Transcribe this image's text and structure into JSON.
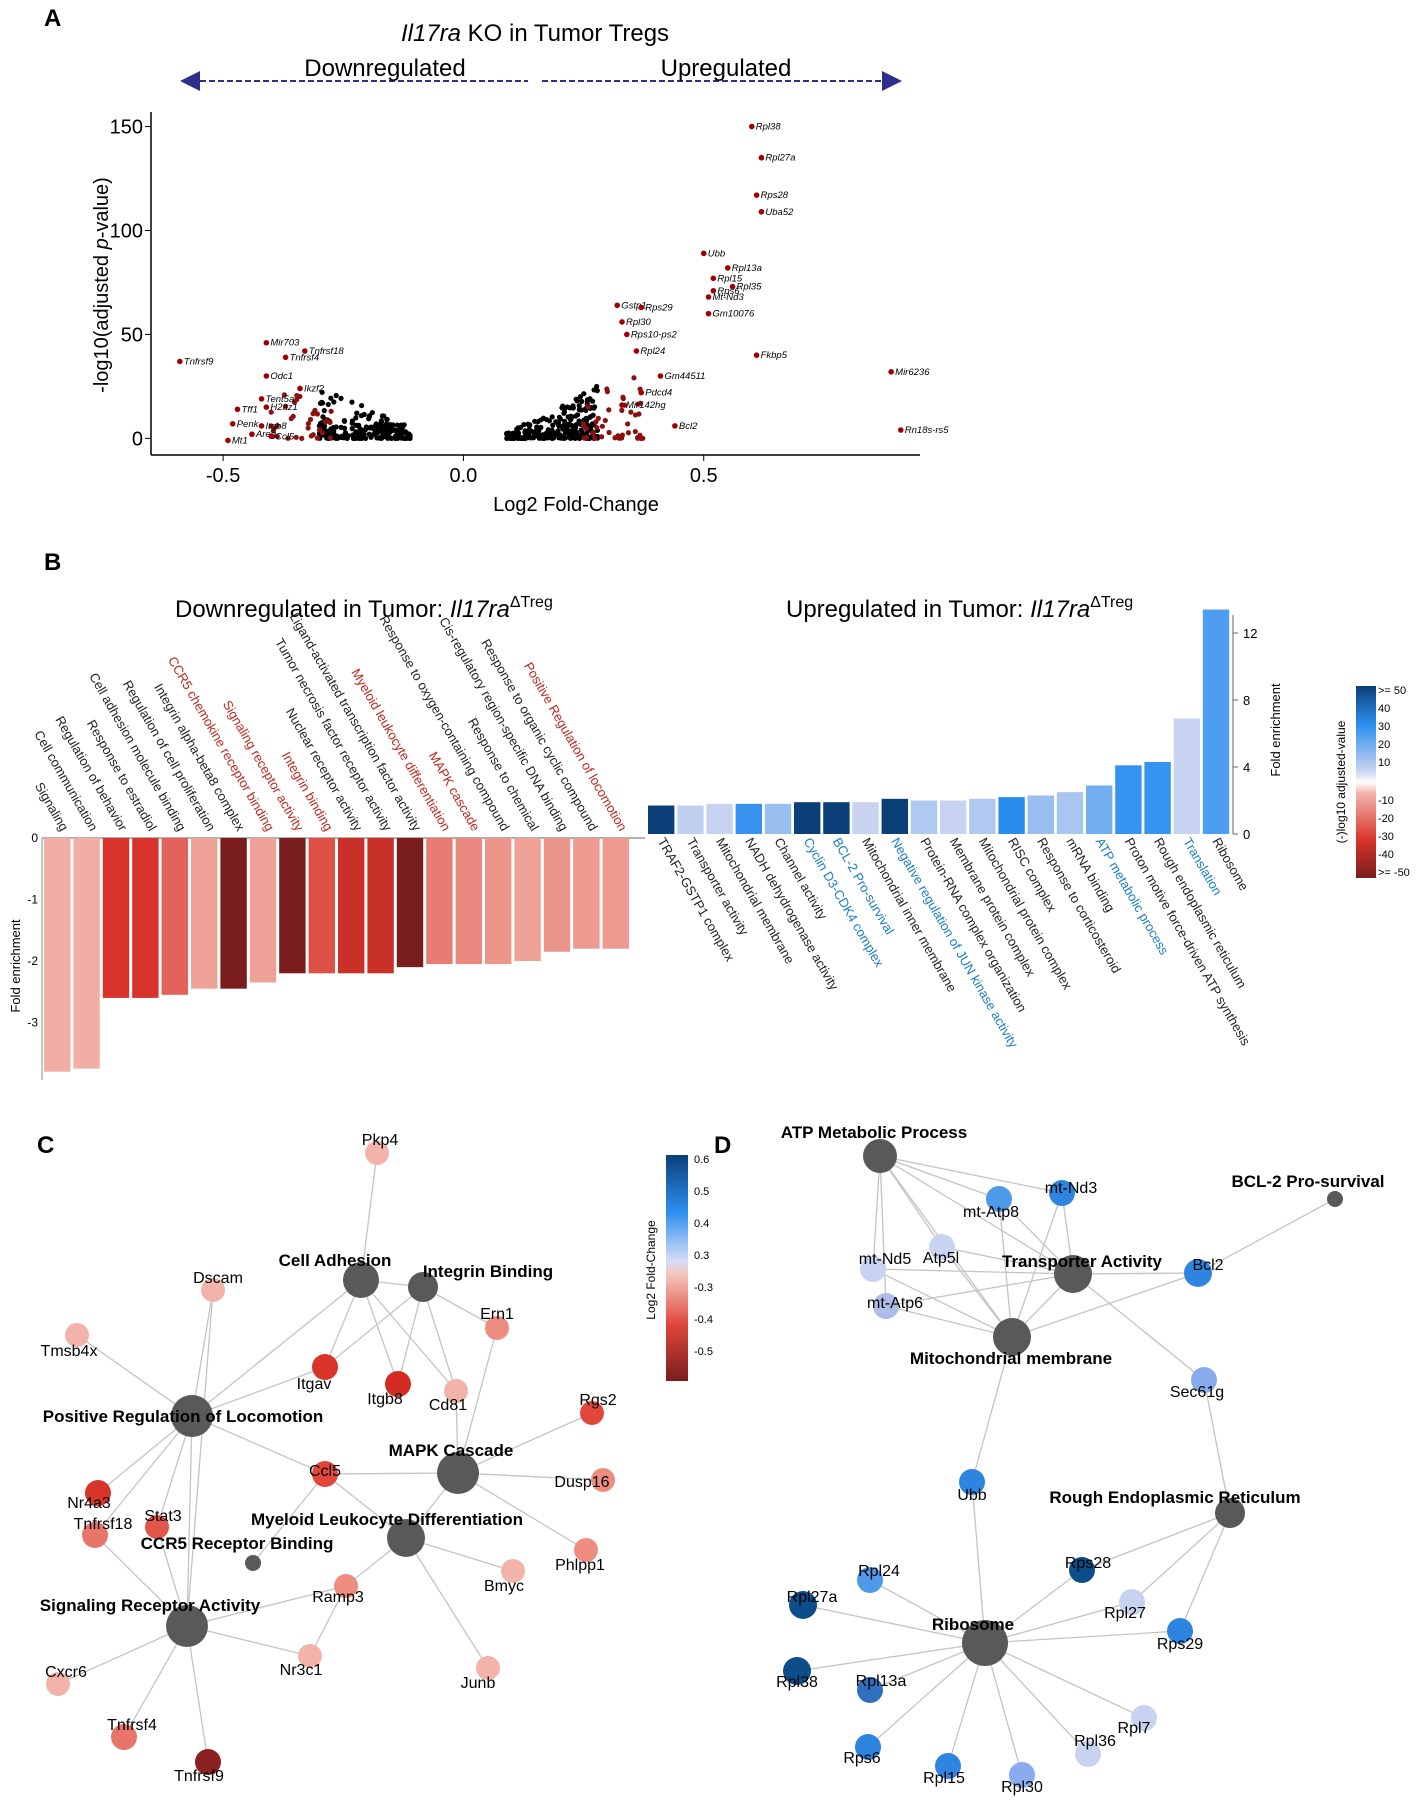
{
  "panel_a": {
    "label": "A",
    "title": "Il17ra KO in Tumor Tregs",
    "down_label": "Downregulated",
    "up_label": "Upregulated",
    "chart_data": {
      "type": "scatter",
      "xlabel": "Log2 Fold-Change",
      "ylabel": "-log10(adjusted p-value)",
      "xlim": [
        -0.65,
        0.95
      ],
      "ylim": [
        -8,
        157
      ],
      "xticks": [
        -0.5,
        0.0,
        0.5
      ],
      "yticks": [
        0,
        50,
        100,
        150
      ],
      "labeled_points": [
        {
          "gene": "Rpl38",
          "x": 0.6,
          "y": 150
        },
        {
          "gene": "Rpl27a",
          "x": 0.62,
          "y": 135
        },
        {
          "gene": "Rps28",
          "x": 0.61,
          "y": 117
        },
        {
          "gene": "Uba52",
          "x": 0.62,
          "y": 109
        },
        {
          "gene": "Ubb",
          "x": 0.5,
          "y": 89
        },
        {
          "gene": "Rpl13a",
          "x": 0.55,
          "y": 82
        },
        {
          "gene": "Rpl15",
          "x": 0.52,
          "y": 77
        },
        {
          "gene": "Rpl35",
          "x": 0.56,
          "y": 73
        },
        {
          "gene": "Rps6",
          "x": 0.52,
          "y": 71
        },
        {
          "gene": "Mt-Nd3",
          "x": 0.51,
          "y": 68
        },
        {
          "gene": "Gstp1",
          "x": 0.32,
          "y": 64
        },
        {
          "gene": "Rps29",
          "x": 0.37,
          "y": 63
        },
        {
          "gene": "Gm10076",
          "x": 0.51,
          "y": 60
        },
        {
          "gene": "Rpl30",
          "x": 0.33,
          "y": 56
        },
        {
          "gene": "Rps10-ps2",
          "x": 0.34,
          "y": 50
        },
        {
          "gene": "Rpl24",
          "x": 0.36,
          "y": 42
        },
        {
          "gene": "Fkbp5",
          "x": 0.61,
          "y": 40
        },
        {
          "gene": "Gm44511",
          "x": 0.41,
          "y": 30
        },
        {
          "gene": "Mir6236",
          "x": 0.89,
          "y": 32
        },
        {
          "gene": "Pdcd4",
          "x": 0.37,
          "y": 22
        },
        {
          "gene": "Mir142hg",
          "x": 0.33,
          "y": 16
        },
        {
          "gene": "Bcl2",
          "x": 0.44,
          "y": 6
        },
        {
          "gene": "Rn18s-rs5",
          "x": 0.91,
          "y": 4
        },
        {
          "gene": "Tnfrsf9",
          "x": -0.59,
          "y": 37
        },
        {
          "gene": "Mir703",
          "x": -0.41,
          "y": 46
        },
        {
          "gene": "Tnfrsf18",
          "x": -0.33,
          "y": 42
        },
        {
          "gene": "Tnfrsf4",
          "x": -0.37,
          "y": 39
        },
        {
          "gene": "Odc1",
          "x": -0.41,
          "y": 30
        },
        {
          "gene": "Ikzf2",
          "x": -0.34,
          "y": 24
        },
        {
          "gene": "Tent5a",
          "x": -0.42,
          "y": 19
        },
        {
          "gene": "H2az1",
          "x": -0.41,
          "y": 15
        },
        {
          "gene": "Tff1",
          "x": -0.47,
          "y": 14
        },
        {
          "gene": "Penk",
          "x": -0.48,
          "y": 7
        },
        {
          "gene": "Itgb8",
          "x": -0.42,
          "y": 6
        },
        {
          "gene": "Areg",
          "x": -0.44,
          "y": 2
        },
        {
          "gene": "Ccl5",
          "x": -0.4,
          "y": 1
        },
        {
          "gene": "Mt1",
          "x": -0.49,
          "y": -1
        }
      ]
    }
  },
  "panel_b": {
    "label": "B",
    "down_title": "Downregulated in Tumor: ",
    "up_title": "Upregulated in Tumor: ",
    "gene_italic": "Il17ra",
    "gene_sup": "ΔTreg",
    "chart_data": [
      {
        "type": "bar",
        "title": "Downregulated in Tumor: Il17ra ΔTreg",
        "ylabel": "Fold enrichment",
        "ylim": [
          -4,
          0
        ],
        "yticks": [
          0,
          -1,
          -2,
          -3
        ],
        "terms": [
          {
            "name": "Signaling",
            "value": -3.8,
            "nlogp": -10,
            "highlight": false
          },
          {
            "name": "Cell communication",
            "value": -3.75,
            "nlogp": -10,
            "highlight": false
          },
          {
            "name": "Regulation of behavior",
            "value": -2.6,
            "nlogp": -30,
            "highlight": false
          },
          {
            "name": "Response to estradiol",
            "value": -2.6,
            "nlogp": -30,
            "highlight": false
          },
          {
            "name": "Cell adhesion molecule binding",
            "value": -2.55,
            "nlogp": -22,
            "highlight": false
          },
          {
            "name": "Regulation of cell proliferation",
            "value": -2.45,
            "nlogp": -12,
            "highlight": false
          },
          {
            "name": "Integrin alpha-beta8 complex",
            "value": -2.45,
            "nlogp": -50,
            "highlight": false
          },
          {
            "name": "CCR5 chemokine receptor binding",
            "value": -2.35,
            "nlogp": -12,
            "highlight": true
          },
          {
            "name": "Signaling receptor activity",
            "value": -2.2,
            "nlogp": -50,
            "highlight": true
          },
          {
            "name": "Integrin binding",
            "value": -2.2,
            "nlogp": -25,
            "highlight": true
          },
          {
            "name": "Nuclear receptor activity",
            "value": -2.2,
            "nlogp": -33,
            "highlight": false
          },
          {
            "name": "Tumor necrosis factor receptor activity",
            "value": -2.2,
            "nlogp": -33,
            "highlight": false
          },
          {
            "name": "Ligand-activated transcription factor activity",
            "value": -2.1,
            "nlogp": -50,
            "highlight": false
          },
          {
            "name": "Myeloid leukocyte differentiation",
            "value": -2.05,
            "nlogp": -18,
            "highlight": true
          },
          {
            "name": "MAPK cascade",
            "value": -2.05,
            "nlogp": -16,
            "highlight": true
          },
          {
            "name": "Response to oxygen-containing compound",
            "value": -2.05,
            "nlogp": -14,
            "highlight": false
          },
          {
            "name": "Response to chemical",
            "value": -2.0,
            "nlogp": -12,
            "highlight": false
          },
          {
            "name": "Cis-regulatory region-specific DNA binding",
            "value": -1.85,
            "nlogp": -14,
            "highlight": false
          },
          {
            "name": "Response to organic cyclic compound",
            "value": -1.8,
            "nlogp": -13,
            "highlight": false
          },
          {
            "name": "Positive Regulation of locomotion",
            "value": -1.8,
            "nlogp": -13,
            "highlight": true
          }
        ]
      },
      {
        "type": "bar",
        "title": "Upregulated in Tumor: Il17ra ΔTreg",
        "ylabel": "Fold enrichment",
        "ylim": [
          0,
          13
        ],
        "yticks": [
          0,
          4,
          8,
          12
        ],
        "terms": [
          {
            "name": "TRAF2-GSTP1 complex",
            "value": 1.7,
            "nlogp": 50,
            "highlight": false
          },
          {
            "name": "Transporter activity",
            "value": 1.7,
            "nlogp": 10,
            "highlight": false
          },
          {
            "name": "Mitochondrial membrane",
            "value": 1.8,
            "nlogp": 9,
            "highlight": false
          },
          {
            "name": "NADH dehydrogenase activity",
            "value": 1.8,
            "nlogp": 28,
            "highlight": false
          },
          {
            "name": "Channel activity",
            "value": 1.8,
            "nlogp": 15,
            "highlight": false
          },
          {
            "name": "Cyclin D3-CDK4 complex",
            "value": 1.9,
            "nlogp": 50,
            "highlight": true
          },
          {
            "name": "BCL-2 Pro-survival",
            "value": 1.9,
            "nlogp": 50,
            "highlight": true
          },
          {
            "name": "Mitochondrial inner membrane",
            "value": 1.9,
            "nlogp": 9,
            "highlight": false
          },
          {
            "name": "Negative regulation of JUN kinase activity",
            "value": 2.1,
            "nlogp": 50,
            "highlight": true
          },
          {
            "name": "Protein-RNA complex organization",
            "value": 2.0,
            "nlogp": 12,
            "highlight": false
          },
          {
            "name": "Membrane protein complex",
            "value": 2.0,
            "nlogp": 9,
            "highlight": false
          },
          {
            "name": "Mitochondrial protein complex",
            "value": 2.1,
            "nlogp": 12,
            "highlight": false
          },
          {
            "name": "RISC complex",
            "value": 2.2,
            "nlogp": 30,
            "highlight": false
          },
          {
            "name": "Response to corticosteroid",
            "value": 2.3,
            "nlogp": 15,
            "highlight": false
          },
          {
            "name": "mRNA binding",
            "value": 2.5,
            "nlogp": 13,
            "highlight": false
          },
          {
            "name": "ATP metabolic process",
            "value": 2.9,
            "nlogp": 20,
            "highlight": true
          },
          {
            "name": "Proton motive force-driven ATP synthesis",
            "value": 4.1,
            "nlogp": 28,
            "highlight": false
          },
          {
            "name": "Rough endoplasmic reticulum",
            "value": 4.3,
            "nlogp": 28,
            "highlight": false
          },
          {
            "name": "Translation",
            "value": 6.9,
            "nlogp": 9,
            "highlight": true
          },
          {
            "name": "Ribosome",
            "value": 13.4,
            "nlogp": 25,
            "highlight": false
          }
        ]
      }
    ],
    "legend": {
      "title": "(-)log10 adjusted-value",
      "top_labels": [
        ">= 50",
        "40",
        "30",
        "20",
        "10"
      ],
      "bottom_labels": [
        "-10",
        "-20",
        "-30",
        "-40",
        ">= -50"
      ]
    }
  },
  "panel_c": {
    "label": "C",
    "hubs": [
      {
        "id": "cell-adhesion",
        "label": "Cell Adhesion"
      },
      {
        "id": "integrin-binding",
        "label": "Integrin Binding"
      },
      {
        "id": "pos-reg-locomotion",
        "label": "Positive Regulation of Locomotion"
      },
      {
        "id": "mapk-cascade",
        "label": "MAPK Cascade"
      },
      {
        "id": "myeloid-leukocyte",
        "label": "Myeloid Leukocyte Differentiation"
      },
      {
        "id": "ccr5-binding",
        "label": "CCR5 Receptor Binding"
      },
      {
        "id": "signaling-receptor",
        "label": "Signaling Receptor Activity"
      }
    ],
    "genes": [
      "Pkp4",
      "Dscam",
      "Tmsb4x",
      "Itgav",
      "Itgb8",
      "Cd81",
      "Ern1",
      "Rgs2",
      "Ccl5",
      "Dusp16",
      "Nr4a3",
      "Stat3",
      "Tnfrsf18",
      "Ramp3",
      "Bmyc",
      "Phlpp1",
      "Nr3c1",
      "Junb",
      "Cxcr6",
      "Tnfrsf4",
      "Tnfrsf9"
    ],
    "legend": {
      "title": "Log2 Fold-Change",
      "labels": [
        "0.6",
        "0.5",
        "0.4",
        "0.3",
        "-0.3",
        "-0.4",
        "-0.5"
      ]
    }
  },
  "panel_d": {
    "label": "D",
    "hubs": [
      {
        "id": "atp-metabolic",
        "label": "ATP Metabolic Process"
      },
      {
        "id": "bcl2-prosurvival",
        "label": "BCL-2 Pro-survival"
      },
      {
        "id": "transporter-activity",
        "label": "Transporter Activity"
      },
      {
        "id": "mito-membrane",
        "label": "Mitochondrial membrane"
      },
      {
        "id": "rough-er",
        "label": "Rough Endoplasmic Reticulum"
      },
      {
        "id": "ribosome",
        "label": "Ribosome"
      }
    ],
    "genes": [
      "mt-Nd3",
      "mt-Atp8",
      "mt-Nd5",
      "Atp5l",
      "mt-Atp6",
      "Bcl2",
      "Sec61g",
      "Ubb",
      "Rpl24",
      "Rps28",
      "Rpl27a",
      "Rpl27",
      "Rps29",
      "Rpl38",
      "Rpl13a",
      "Rpl7",
      "Rpl36",
      "Rps6",
      "Rpl15",
      "Rpl30"
    ]
  }
}
